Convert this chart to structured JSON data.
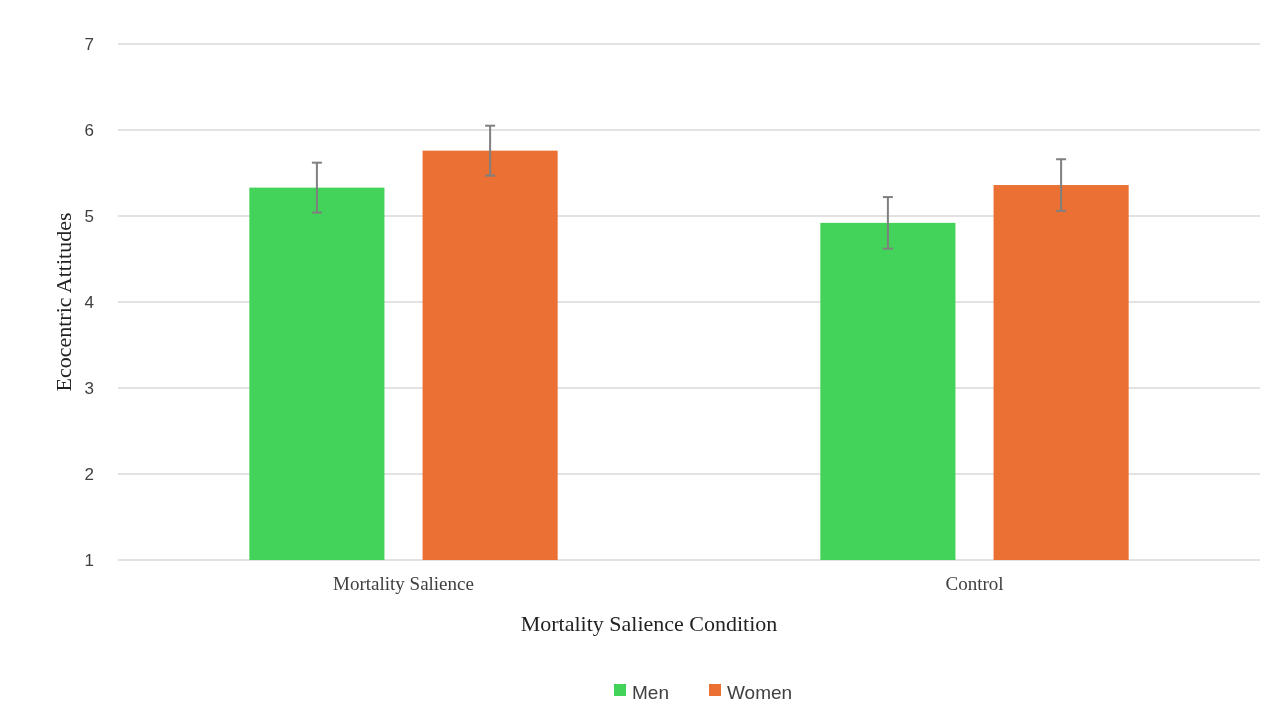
{
  "chart_data": {
    "type": "bar",
    "xlabel": "Mortality Salience Condition",
    "ylabel": "Ecocentric Attitudes",
    "categories": [
      "Mortality Salience",
      "Control"
    ],
    "series": [
      {
        "name": "Men",
        "color": "#44d35a",
        "values": [
          5.33,
          4.92
        ],
        "errors": [
          0.29,
          0.3
        ]
      },
      {
        "name": "Women",
        "color": "#ea7133",
        "values": [
          5.76,
          5.36
        ],
        "errors": [
          0.29,
          0.3
        ]
      }
    ],
    "ylim": [
      1,
      7
    ],
    "yticks": [
      1,
      2,
      3,
      4,
      5,
      6,
      7
    ],
    "grid": "y",
    "legend": "bottom"
  }
}
